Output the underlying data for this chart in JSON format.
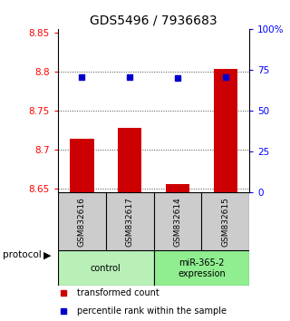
{
  "title": "GDS5496 / 7936683",
  "samples": [
    "GSM832616",
    "GSM832617",
    "GSM832614",
    "GSM832615"
  ],
  "bar_values": [
    8.714,
    8.728,
    8.655,
    8.803
  ],
  "percentile_values": [
    70.5,
    70.5,
    70.0,
    70.5
  ],
  "ylim_left": [
    8.645,
    8.855
  ],
  "ylim_right": [
    0,
    100
  ],
  "yticks_left": [
    8.65,
    8.7,
    8.75,
    8.8,
    8.85
  ],
  "yticks_right": [
    0,
    25,
    50,
    75,
    100
  ],
  "ytick_labels_right": [
    "0",
    "25",
    "50",
    "75",
    "100%"
  ],
  "bar_color": "#cc0000",
  "dot_color": "#0000cc",
  "bar_bottom": 8.645,
  "groups": [
    {
      "label": "control",
      "samples": [
        0,
        1
      ],
      "color": "#b8f0b8"
    },
    {
      "label": "miR-365-2\nexpression",
      "samples": [
        2,
        3
      ],
      "color": "#90ee90"
    }
  ],
  "legend_bar_label": "transformed count",
  "legend_dot_label": "percentile rank within the sample",
  "protocol_label": "protocol",
  "sample_box_color": "#cccccc",
  "background_color": "#ffffff",
  "dotted_line_color": "#444444"
}
